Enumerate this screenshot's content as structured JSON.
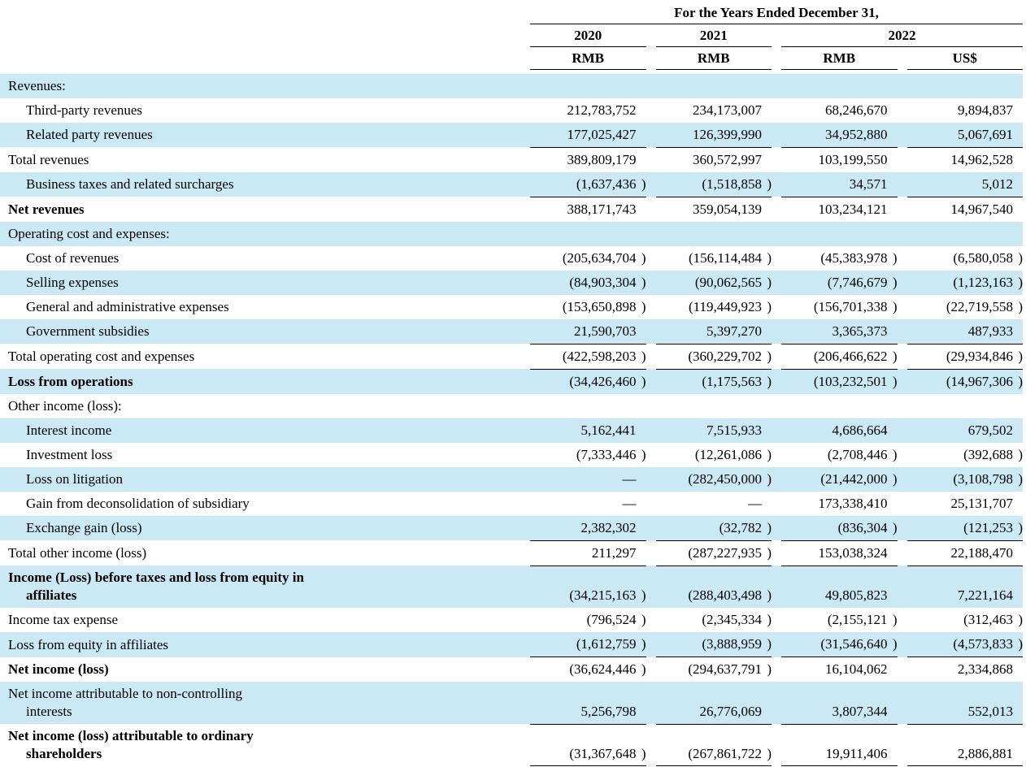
{
  "colors": {
    "row_shade": "#cbe8f5",
    "rule": "#000000"
  },
  "table": {
    "header": {
      "title": "For the Years Ended December 31,",
      "years": [
        "2020",
        "2021",
        "2022"
      ],
      "currencies": [
        "RMB",
        "RMB",
        "RMB",
        "US$"
      ]
    },
    "rows": [
      {
        "label": "Revenues:",
        "indent": 0,
        "bold": false,
        "shaded": true,
        "rule": "none",
        "values": [
          "",
          "",
          "",
          ""
        ]
      },
      {
        "label": "Third-party revenues",
        "indent": 1,
        "bold": false,
        "shaded": false,
        "rule": "none",
        "values": [
          "212,783,752",
          "234,173,007",
          "68,246,670",
          "9,894,837"
        ]
      },
      {
        "label": "Related party revenues",
        "indent": 1,
        "bold": false,
        "shaded": true,
        "rule": "single",
        "values": [
          "177,025,427",
          "126,399,990",
          "34,952,880",
          "5,067,691"
        ]
      },
      {
        "label": "Total revenues",
        "indent": 0,
        "bold": false,
        "shaded": false,
        "rule": "none",
        "values": [
          "389,809,179",
          "360,572,997",
          "103,199,550",
          "14,962,528"
        ]
      },
      {
        "label": "Business taxes and related surcharges",
        "indent": 1,
        "bold": false,
        "shaded": true,
        "rule": "single",
        "values": [
          "(1,637,436)",
          "(1,518,858)",
          "34,571",
          "5,012"
        ]
      },
      {
        "label": "Net revenues",
        "indent": 0,
        "bold": true,
        "shaded": false,
        "rule": "none",
        "values": [
          "388,171,743",
          "359,054,139",
          "103,234,121",
          "14,967,540"
        ]
      },
      {
        "label": "Operating cost and expenses:",
        "indent": 0,
        "bold": false,
        "shaded": true,
        "rule": "none",
        "values": [
          "",
          "",
          "",
          ""
        ]
      },
      {
        "label": "Cost of revenues",
        "indent": 1,
        "bold": false,
        "shaded": false,
        "rule": "none",
        "values": [
          "(205,634,704)",
          "(156,114,484)",
          "(45,383,978)",
          "(6,580,058)"
        ]
      },
      {
        "label": "Selling expenses",
        "indent": 1,
        "bold": false,
        "shaded": true,
        "rule": "none",
        "values": [
          "(84,903,304)",
          "(90,062,565)",
          "(7,746,679)",
          "(1,123,163)"
        ]
      },
      {
        "label": "General and administrative expenses",
        "indent": 1,
        "bold": false,
        "shaded": false,
        "rule": "none",
        "values": [
          "(153,650,898)",
          "(119,449,923)",
          "(156,701,338)",
          "(22,719,558)"
        ]
      },
      {
        "label": "Government subsidies",
        "indent": 1,
        "bold": false,
        "shaded": true,
        "rule": "single",
        "values": [
          "21,590,703",
          "5,397,270",
          "3,365,373",
          "487,933"
        ]
      },
      {
        "label": "Total operating cost and expenses",
        "indent": 0,
        "bold": false,
        "shaded": false,
        "rule": "single",
        "values": [
          "(422,598,203)",
          "(360,229,702)",
          "(206,466,622)",
          "(29,934,846)"
        ]
      },
      {
        "label": "Loss from operations",
        "indent": 0,
        "bold": true,
        "shaded": true,
        "rule": "none",
        "values": [
          "(34,426,460)",
          "(1,175,563)",
          "(103,232,501)",
          "(14,967,306)"
        ]
      },
      {
        "label": "Other income (loss):",
        "indent": 0,
        "bold": false,
        "shaded": false,
        "rule": "none",
        "values": [
          "",
          "",
          "",
          ""
        ]
      },
      {
        "label": "Interest income",
        "indent": 1,
        "bold": false,
        "shaded": true,
        "rule": "none",
        "values": [
          "5,162,441",
          "7,515,933",
          "4,686,664",
          "679,502"
        ]
      },
      {
        "label": "Investment loss",
        "indent": 1,
        "bold": false,
        "shaded": false,
        "rule": "none",
        "values": [
          "(7,333,446)",
          "(12,261,086)",
          "(2,708,446)",
          "(392,688)"
        ]
      },
      {
        "label": "Loss on litigation",
        "indent": 1,
        "bold": false,
        "shaded": true,
        "rule": "none",
        "values": [
          "—",
          "(282,450,000)",
          "(21,442,000)",
          "(3,108,798)"
        ]
      },
      {
        "label": "Gain from deconsolidation of subsidiary",
        "indent": 1,
        "bold": false,
        "shaded": false,
        "rule": "none",
        "values": [
          "—",
          "—",
          "173,338,410",
          "25,131,707"
        ]
      },
      {
        "label": "Exchange gain (loss)",
        "indent": 1,
        "bold": false,
        "shaded": true,
        "rule": "single",
        "values": [
          "2,382,302",
          "(32,782)",
          "(836,304)",
          "(121,253)"
        ]
      },
      {
        "label": "Total other income (loss)",
        "indent": 0,
        "bold": false,
        "shaded": false,
        "rule": "single",
        "values": [
          "211,297",
          "(287,227,935)",
          "153,038,324",
          "22,188,470"
        ]
      },
      {
        "label": "Income (Loss) before taxes and loss from equity in",
        "label2": "affiliates",
        "indent": 0,
        "bold": true,
        "shaded": true,
        "rule": "none",
        "values": [
          "(34,215,163)",
          "(288,403,498)",
          "49,805,823",
          "7,221,164"
        ]
      },
      {
        "label": "Income tax expense",
        "indent": 0,
        "bold": false,
        "shaded": false,
        "rule": "none",
        "values": [
          "(796,524)",
          "(2,345,334)",
          "(2,155,121)",
          "(312,463)"
        ]
      },
      {
        "label": "Loss from equity in affiliates",
        "indent": 0,
        "bold": false,
        "shaded": true,
        "rule": "single",
        "values": [
          "(1,612,759)",
          "(3,888,959)",
          "(31,546,640)",
          "(4,573,833)"
        ]
      },
      {
        "label": "Net income (loss)",
        "indent": 0,
        "bold": true,
        "shaded": false,
        "rule": "none",
        "values": [
          "(36,624,446)",
          "(294,637,791)",
          "16,104,062",
          "2,334,868"
        ]
      },
      {
        "label": "Net income attributable to non-controlling",
        "label2": "interests",
        "indent": 0,
        "bold": false,
        "shaded": true,
        "rule": "single",
        "values": [
          "5,256,798",
          "26,776,069",
          "3,807,344",
          "552,013"
        ]
      },
      {
        "label": "Net income (loss) attributable to ordinary",
        "label2": "shareholders",
        "indent": 0,
        "bold": true,
        "shaded": false,
        "rule": "double",
        "values": [
          "(31,367,648)",
          "(267,861,722)",
          "19,911,406",
          "2,886,881"
        ]
      }
    ]
  }
}
